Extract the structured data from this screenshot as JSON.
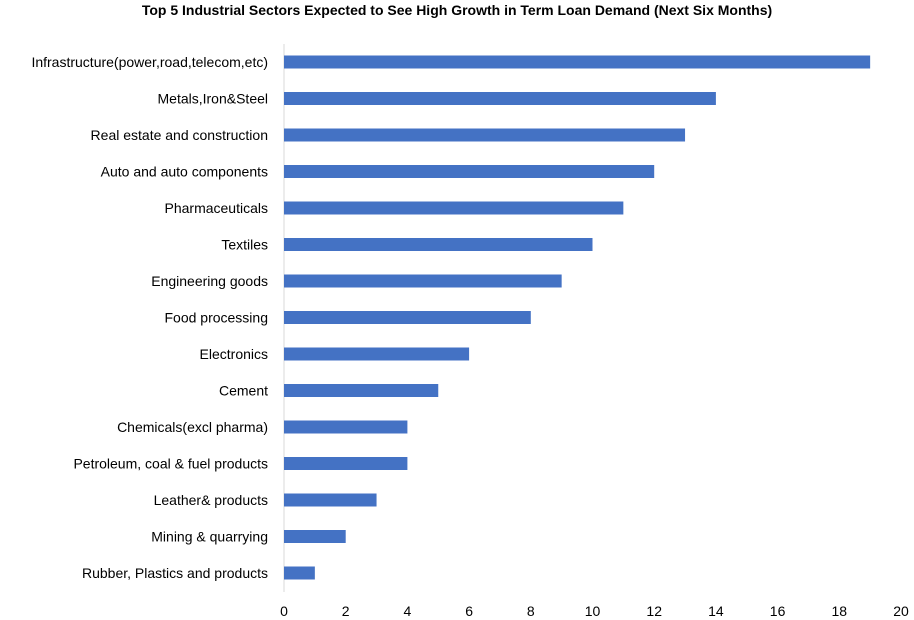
{
  "chart_data": {
    "type": "bar",
    "orientation": "horizontal",
    "title": "Top 5 Industrial Sectors Expected to See High Growth in Term Loan Demand (Next Six Months)",
    "categories": [
      "Infrastructure(power,road,telecom,etc)",
      "Metals,Iron&Steel",
      "Real estate and construction",
      "Auto and auto components",
      "Pharmaceuticals",
      "Textiles",
      "Engineering goods",
      "Food processing",
      "Electronics",
      "Cement",
      "Chemicals(excl pharma)",
      "Petroleum, coal & fuel products",
      "Leather& products",
      "Mining & quarrying",
      "Rubber, Plastics and products"
    ],
    "values": [
      19,
      14,
      13,
      12,
      11,
      10,
      9,
      8,
      6,
      5,
      4,
      4,
      3,
      2,
      1
    ],
    "xlabel": "",
    "ylabel": "",
    "xlim": [
      0,
      20
    ],
    "xticks": [
      0,
      2,
      4,
      6,
      8,
      10,
      12,
      14,
      16,
      18,
      20
    ],
    "grid": false,
    "legend": "none",
    "bar_color": "#4472C4",
    "axis_color": "#D9D9D9"
  }
}
